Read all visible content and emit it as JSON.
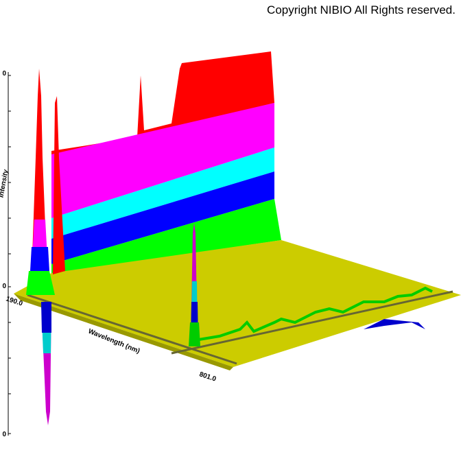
{
  "header": {
    "copyright": "Copyright NIBIO All Rights reserved."
  },
  "axes": {
    "intensity_label": "Intensity",
    "wavelength_label": "Wavelength (nm)",
    "wavelength_start": "190.0",
    "wavelength_end": "801.0",
    "intensity_top": "0",
    "intensity_mid": "0",
    "intensity_bottom": "0"
  }
}
